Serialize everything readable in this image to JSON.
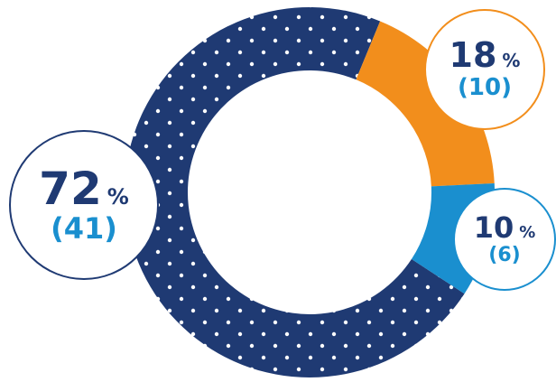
{
  "chart_data": {
    "type": "pie",
    "variant": "donut",
    "slices": [
      {
        "percent": 72,
        "count": 41,
        "color": "#1f3a73",
        "pattern": "white-dots",
        "pct_text": "72",
        "count_text": "(41)"
      },
      {
        "percent": 18,
        "count": 10,
        "color": "#f28e1c",
        "pct_text": "18",
        "count_text": "(10)"
      },
      {
        "percent": 10,
        "count": 6,
        "color": "#1a8fcf",
        "pct_text": "10",
        "count_text": "(6)"
      }
    ],
    "percent_sign": "%",
    "legend": "none"
  }
}
